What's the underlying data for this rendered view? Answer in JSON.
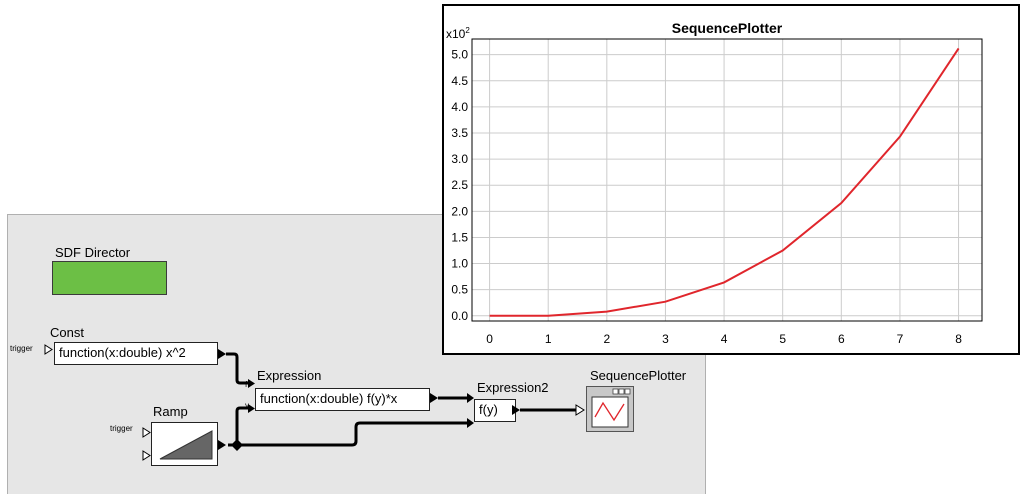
{
  "model": {
    "director_label": "SDF Director",
    "const": {
      "title": "Const",
      "expression": "function(x:double) x^2",
      "trigger_label": "trigger"
    },
    "ramp": {
      "title": "Ramp",
      "trigger_label": "trigger"
    },
    "expression": {
      "title": "Expression",
      "text": "function(x:double) f(y)*x",
      "port_f": "f",
      "port_y": "y"
    },
    "expression2": {
      "title": "Expression2",
      "text": "f(y)"
    },
    "plotter": {
      "title": "SequencePlotter",
      "icon": "sequence-plotter-icon"
    }
  },
  "plot_window": {
    "title": "SequencePlotter",
    "exponent_label": "x10",
    "exponent_power": "2"
  },
  "colors": {
    "director_fill": "#6cbf45",
    "series_line": "#e0262c",
    "canvas_bg": "#e6e6e6"
  },
  "chart_data": {
    "type": "line",
    "title": "SequencePlotter",
    "xlabel": "",
    "ylabel": "",
    "xlim": [
      -0.3,
      8.4
    ],
    "ylim": [
      -0.1,
      5.3
    ],
    "grid": true,
    "x_ticks": [
      "0",
      "1",
      "2",
      "3",
      "4",
      "5",
      "6",
      "7",
      "8"
    ],
    "y_ticks": [
      "0.0",
      "0.5",
      "1.0",
      "1.5",
      "2.0",
      "2.5",
      "3.0",
      "3.5",
      "4.0",
      "4.5",
      "5.0"
    ],
    "series": [
      {
        "x": [
          0,
          1,
          2,
          3,
          4,
          5,
          6,
          7,
          8
        ],
        "y": [
          0,
          0,
          0.08,
          0.27,
          0.64,
          1.25,
          2.16,
          3.43,
          5.12
        ]
      }
    ]
  }
}
